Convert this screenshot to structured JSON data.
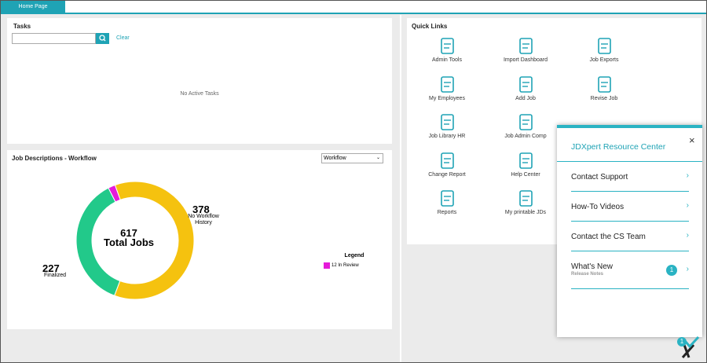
{
  "tab": "Home Page",
  "tasks": {
    "title": "Tasks",
    "clear": "Clear",
    "empty": "No Active Tasks"
  },
  "workflow": {
    "title": "Job Descriptions - Workflow",
    "select": "Workflow",
    "legend_title": "Legend"
  },
  "chart_data": {
    "type": "donut",
    "categories": [
      "No Workflow History",
      "Finalized",
      "In Review"
    ],
    "values": [
      378,
      227,
      12
    ],
    "colors": [
      "#f5c20f",
      "#22c98a",
      "#e51bd9"
    ],
    "total": 617,
    "total_label": "Total Jobs"
  },
  "quick_links": {
    "title": "Quick Links",
    "items": [
      "Admin Tools",
      "Import Dashboard",
      "Job Exports",
      "My Employees",
      "Add Job",
      "Revise Job",
      "Job Library HR",
      "Job Admin Comp",
      "Change Report",
      "Help Center",
      "Reports",
      "My printable JDs"
    ]
  },
  "resource_center": {
    "title": "JDXpert Resource Center",
    "items": [
      "Contact Support",
      "How-To Videos",
      "Contact the CS Team",
      "What's New"
    ],
    "subtitle": "Release Notes",
    "badge": 1
  },
  "launcher_badge": 1
}
